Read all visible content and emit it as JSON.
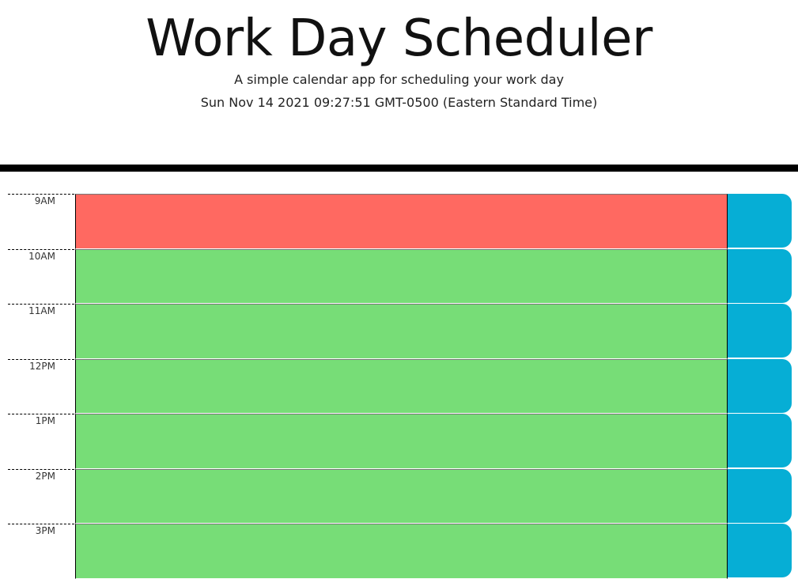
{
  "header": {
    "title": "Work Day Scheduler",
    "subtitle": "A simple calendar app for scheduling your work day",
    "current_date": "Sun Nov 14 2021 09:27:51 GMT-0500 (Eastern Standard Time)"
  },
  "colors": {
    "present": "#ff6961",
    "future": "#77dd77",
    "past": "#d3d3d3",
    "save_button": "#06aed5"
  },
  "timeblocks": [
    {
      "hour": "9AM",
      "state": "present",
      "text": ""
    },
    {
      "hour": "10AM",
      "state": "future",
      "text": ""
    },
    {
      "hour": "11AM",
      "state": "future",
      "text": ""
    },
    {
      "hour": "12PM",
      "state": "future",
      "text": ""
    },
    {
      "hour": "1PM",
      "state": "future",
      "text": ""
    },
    {
      "hour": "2PM",
      "state": "future",
      "text": ""
    },
    {
      "hour": "3PM",
      "state": "future",
      "text": ""
    }
  ]
}
